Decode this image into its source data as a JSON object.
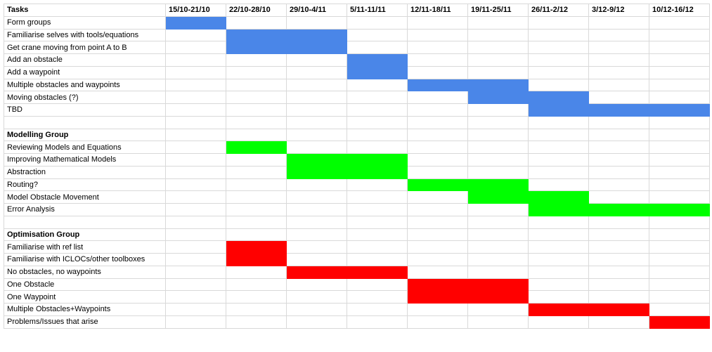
{
  "colors": {
    "tasks_group": "#4a86e8",
    "modelling_group": "#00ff00",
    "optimisation_group": "#ff0000",
    "gridline": "#d9d9d9"
  },
  "header": {
    "tasks_label": "Tasks",
    "weeks": [
      "15/10-21/10",
      "22/10-28/10",
      "29/10-4/11",
      "5/11-11/11",
      "12/11-18/11",
      "19/11-25/11",
      "26/11-2/12",
      "3/12-9/12",
      "10/12-16/12"
    ]
  },
  "rows": [
    {
      "type": "header"
    },
    {
      "type": "task",
      "label": "Form groups",
      "span": [
        0,
        0
      ],
      "color": "#4a86e8"
    },
    {
      "type": "task",
      "label": "Familiarise selves with tools/equations",
      "span": [
        1,
        2
      ],
      "color": "#4a86e8"
    },
    {
      "type": "task",
      "label": "Get crane moving from point A to B",
      "span": [
        1,
        2
      ],
      "color": "#4a86e8"
    },
    {
      "type": "task",
      "label": "Add an obstacle",
      "span": [
        3,
        3
      ],
      "color": "#4a86e8"
    },
    {
      "type": "task",
      "label": "Add a waypoint",
      "span": [
        3,
        3
      ],
      "color": "#4a86e8"
    },
    {
      "type": "task",
      "label": "Multiple obstacles and waypoints",
      "span": [
        4,
        5
      ],
      "color": "#4a86e8"
    },
    {
      "type": "task",
      "label": "Moving obstacles (?)",
      "span": [
        5,
        6
      ],
      "color": "#4a86e8"
    },
    {
      "type": "task",
      "label": "TBD",
      "span": [
        6,
        8
      ],
      "color": "#4a86e8"
    },
    {
      "type": "blank"
    },
    {
      "type": "group",
      "label": "Modelling Group"
    },
    {
      "type": "task",
      "label": "Reviewing Models and Equations",
      "span": [
        1,
        1
      ],
      "color": "#00ff00"
    },
    {
      "type": "task",
      "label": "Improving Mathematical Models",
      "span": [
        2,
        3
      ],
      "color": "#00ff00"
    },
    {
      "type": "task",
      "label": "Abstraction",
      "span": [
        2,
        3
      ],
      "color": "#00ff00"
    },
    {
      "type": "task",
      "label": "Routing?",
      "span": [
        4,
        5
      ],
      "color": "#00ff00"
    },
    {
      "type": "task",
      "label": "Model Obstacle Movement",
      "span": [
        5,
        6
      ],
      "color": "#00ff00"
    },
    {
      "type": "task",
      "label": "Error Analysis",
      "span": [
        6,
        8
      ],
      "color": "#00ff00"
    },
    {
      "type": "blank"
    },
    {
      "type": "group",
      "label": "Optimisation Group"
    },
    {
      "type": "task",
      "label": "Familiarise with ref list",
      "span": [
        1,
        1
      ],
      "color": "#ff0000"
    },
    {
      "type": "task",
      "label": "Familiarise with ICLOCs/other toolboxes",
      "span": [
        1,
        1
      ],
      "color": "#ff0000"
    },
    {
      "type": "task",
      "label": "No obstacles, no waypoints",
      "span": [
        2,
        3
      ],
      "color": "#ff0000"
    },
    {
      "type": "task",
      "label": "One Obstacle",
      "span": [
        4,
        5
      ],
      "color": "#ff0000"
    },
    {
      "type": "task",
      "label": "One Waypoint",
      "span": [
        4,
        5
      ],
      "color": "#ff0000"
    },
    {
      "type": "task",
      "label": "Multiple Obstacles+Waypoints",
      "span": [
        6,
        7
      ],
      "color": "#ff0000"
    },
    {
      "type": "task",
      "label": "Problems/Issues that arise",
      "span": [
        8,
        8
      ],
      "color": "#ff0000"
    }
  ]
}
